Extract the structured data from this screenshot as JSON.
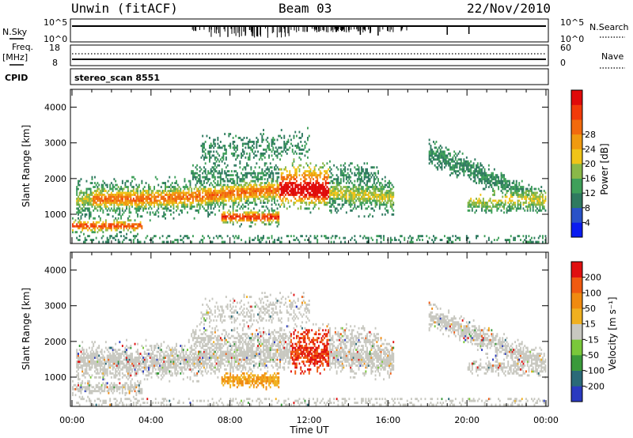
{
  "header": {
    "station": "Unwin (fitACF)",
    "beam": "Beam 03",
    "date": "22/Nov/2010"
  },
  "strip_labels": {
    "nsky": "N.Sky",
    "nsky_ticks": [
      "10^5",
      "10^0"
    ],
    "nsearch": "N.Search",
    "nsearch_ticks": [
      "10^5",
      "10^0"
    ],
    "freq_top": "Freq.",
    "freq_unit": "[MHz]",
    "freq_ticks": [
      "18",
      "8"
    ],
    "nave": "Nave",
    "nave_ticks": [
      "60",
      "0"
    ],
    "cpid": "CPID",
    "cpid_value": "stereo_scan 8551"
  },
  "chart_data": [
    {
      "type": "heatmap",
      "name": "power",
      "ylabel": "Slant Range [km]",
      "xlabel": "",
      "x_ticks": [
        "00:00",
        "04:00",
        "08:00",
        "12:00",
        "16:00",
        "20:00",
        "00:00"
      ],
      "y_ticks": [
        1000,
        2000,
        3000,
        4000
      ],
      "x_range_hours": [
        0,
        24
      ],
      "y_range_km": [
        180,
        4500
      ],
      "colorbar": {
        "label": "Power [dB]",
        "ticks": [
          4,
          8,
          12,
          16,
          20,
          24,
          28
        ],
        "colors": [
          "#0a1cf0",
          "#2a52c8",
          "#2f7a60",
          "#3fa05a",
          "#8ab848",
          "#f0c418",
          "#f09a10",
          "#f26a0e",
          "#f23a0a",
          "#e00a0a"
        ]
      }
    },
    {
      "type": "heatmap",
      "name": "velocity",
      "ylabel": "Slant Range [km]",
      "xlabel": "Time UT",
      "x_ticks": [
        "00:00",
        "04:00",
        "08:00",
        "12:00",
        "16:00",
        "20:00",
        "00:00"
      ],
      "y_ticks": [
        1000,
        2000,
        3000,
        4000
      ],
      "x_range_hours": [
        0,
        24
      ],
      "y_range_km": [
        180,
        4500
      ],
      "colorbar": {
        "label": "Velocity [m s⁻¹]",
        "ticks": [
          200,
          100,
          50,
          15,
          -15,
          -50,
          -100,
          -200
        ],
        "colors": [
          "#2a3ac0",
          "#2a6a78",
          "#3a9a3a",
          "#7ac83a",
          "#c8c8c0",
          "#f0b020",
          "#f08a10",
          "#f05a10",
          "#e01010"
        ]
      }
    }
  ]
}
